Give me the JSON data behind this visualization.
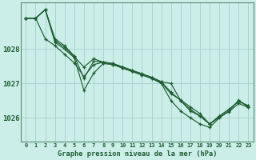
{
  "title": "Graphe pression niveau de la mer (hPa)",
  "background_color": "#cceee8",
  "grid_color": "#aad4ce",
  "line_color": "#1e5c32",
  "spine_color": "#5a8a70",
  "x_ticks": [
    0,
    1,
    2,
    3,
    4,
    5,
    6,
    7,
    8,
    9,
    10,
    11,
    12,
    13,
    14,
    15,
    16,
    17,
    18,
    19,
    20,
    21,
    22,
    23
  ],
  "ylim": [
    1025.3,
    1029.35
  ],
  "yticks": [
    1026,
    1027,
    1028
  ],
  "series": [
    [
      1028.9,
      1028.9,
      1029.15,
      1028.3,
      1028.1,
      1027.8,
      1027.15,
      1027.65,
      1027.62,
      1027.58,
      1027.48,
      1027.38,
      1027.28,
      1027.18,
      1027.05,
      1026.75,
      1026.5,
      1026.25,
      1026.05,
      1025.82,
      1026.05,
      1026.25,
      1026.48,
      1026.35
    ],
    [
      1028.9,
      1028.9,
      1028.3,
      1028.1,
      1027.85,
      1027.6,
      1027.2,
      1027.55,
      1027.62,
      1027.58,
      1027.48,
      1027.38,
      1027.28,
      1027.18,
      1027.05,
      1027.0,
      1026.5,
      1026.2,
      1026.05,
      1025.82,
      1026.05,
      1026.25,
      1026.48,
      1026.35
    ],
    [
      1028.9,
      1028.9,
      1029.15,
      1028.2,
      1028.0,
      1027.75,
      1026.8,
      1027.3,
      1027.58,
      1027.55,
      1027.45,
      1027.35,
      1027.25,
      1027.15,
      1027.0,
      1026.5,
      1026.2,
      1026.0,
      1025.82,
      1025.72,
      1026.0,
      1026.2,
      1026.52,
      1026.3
    ],
    [
      1028.9,
      1028.9,
      1029.15,
      1028.25,
      1028.05,
      1027.78,
      1027.48,
      1027.72,
      1027.62,
      1027.55,
      1027.45,
      1027.35,
      1027.25,
      1027.15,
      1027.02,
      1026.7,
      1026.52,
      1026.32,
      1026.12,
      1025.82,
      1026.02,
      1026.18,
      1026.42,
      1026.3
    ]
  ]
}
